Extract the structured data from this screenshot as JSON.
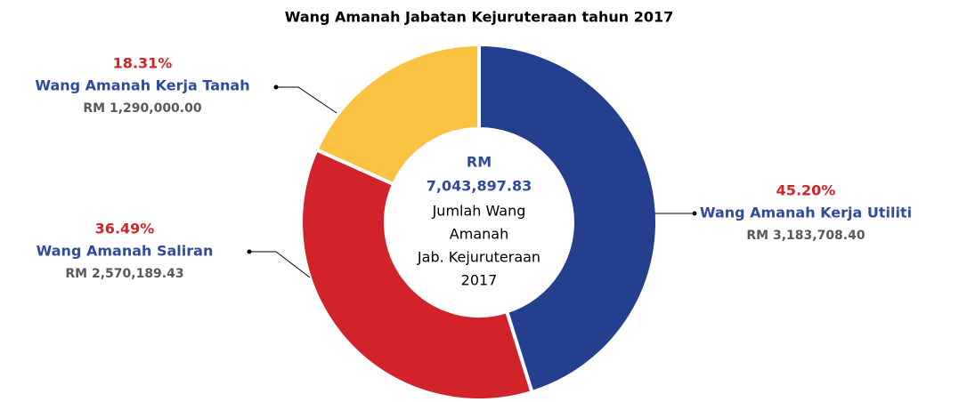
{
  "chart_data": {
    "type": "donut",
    "title": "Wang Amanah Jabatan Kejuruteraan tahun 2017",
    "categories": [
      "Wang Amanah Kerja Utiliti",
      "Wang Amanah Saliran",
      "Wang Amanah Kerja Tanah"
    ],
    "values": [
      45.2,
      36.49,
      18.31
    ],
    "value_labels": [
      "45.20%",
      "36.49%",
      "18.31%"
    ],
    "amounts": [
      "RM 3,183,708.40",
      "RM 2,570,189.43",
      "RM 1,290,000.00"
    ],
    "colors": [
      "#253f8f",
      "#d2232a",
      "#fbc140"
    ],
    "center_label": [
      "RM",
      "7,043,897.83",
      "Jumlah Wang",
      "Amanah",
      "Jab. Kejuruteraan",
      "2017"
    ]
  }
}
